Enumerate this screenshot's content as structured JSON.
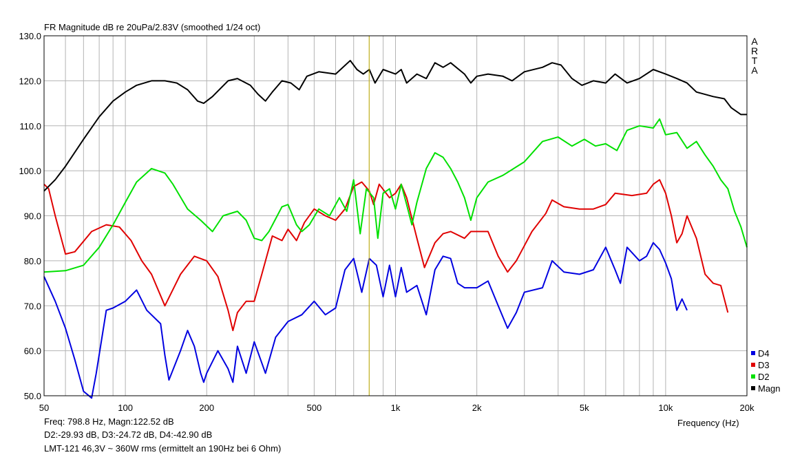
{
  "chart_data": {
    "type": "line",
    "title": "FR Magnitude dB re 20uPa/2.83V (smoothed 1/24 oct)",
    "xlabel": "Frequency (Hz)",
    "ylabel": "",
    "x_scale": "log",
    "xlim": [
      50,
      20000
    ],
    "ylim": [
      50,
      130
    ],
    "xtick_labels": [
      {
        "value": 50,
        "label": "50"
      },
      {
        "value": 100,
        "label": "100"
      },
      {
        "value": 200,
        "label": "200"
      },
      {
        "value": 500,
        "label": "500"
      },
      {
        "value": 1000,
        "label": "1k"
      },
      {
        "value": 2000,
        "label": "2k"
      },
      {
        "value": 5000,
        "label": "5k"
      },
      {
        "value": 10000,
        "label": "10k"
      },
      {
        "value": 20000,
        "label": "20k"
      }
    ],
    "ytick_labels": [
      {
        "value": 130,
        "label": "130.0"
      },
      {
        "value": 120,
        "label": "120.0"
      },
      {
        "value": 110,
        "label": "110.0"
      },
      {
        "value": 100,
        "label": "100.0"
      },
      {
        "value": 90,
        "label": "90.0"
      },
      {
        "value": 80,
        "label": "80.0"
      },
      {
        "value": 70,
        "label": "70.0"
      },
      {
        "value": 60,
        "label": "60.0"
      },
      {
        "value": 50,
        "label": "50.0"
      }
    ],
    "grid": true,
    "cursor_x": 798.8,
    "legend_position": "bottom-right",
    "series": [
      {
        "name": "Magn",
        "color": "#000000",
        "points": [
          [
            50,
            95.5
          ],
          [
            55,
            98
          ],
          [
            60,
            101
          ],
          [
            70,
            107
          ],
          [
            80,
            112
          ],
          [
            90,
            115.5
          ],
          [
            100,
            117.5
          ],
          [
            110,
            119
          ],
          [
            125,
            120
          ],
          [
            140,
            120
          ],
          [
            155,
            119.5
          ],
          [
            170,
            118
          ],
          [
            185,
            115.5
          ],
          [
            195,
            115
          ],
          [
            210,
            116.5
          ],
          [
            240,
            120
          ],
          [
            260,
            120.5
          ],
          [
            290,
            119
          ],
          [
            310,
            117
          ],
          [
            330,
            115.5
          ],
          [
            350,
            117.5
          ],
          [
            380,
            120
          ],
          [
            410,
            119.5
          ],
          [
            440,
            118
          ],
          [
            470,
            121
          ],
          [
            520,
            122
          ],
          [
            600,
            121.5
          ],
          [
            680,
            124.5
          ],
          [
            720,
            122.5
          ],
          [
            760,
            121.5
          ],
          [
            800,
            122.5
          ],
          [
            840,
            119.5
          ],
          [
            900,
            122.5
          ],
          [
            1000,
            121.5
          ],
          [
            1050,
            122.5
          ],
          [
            1100,
            119.5
          ],
          [
            1200,
            121.5
          ],
          [
            1300,
            120.5
          ],
          [
            1400,
            124
          ],
          [
            1500,
            123
          ],
          [
            1600,
            124
          ],
          [
            1800,
            121.5
          ],
          [
            1900,
            119.5
          ],
          [
            2000,
            121
          ],
          [
            2200,
            121.5
          ],
          [
            2500,
            121
          ],
          [
            2700,
            120
          ],
          [
            3000,
            122
          ],
          [
            3500,
            123
          ],
          [
            3800,
            124
          ],
          [
            4100,
            123.5
          ],
          [
            4500,
            120.5
          ],
          [
            4900,
            119
          ],
          [
            5400,
            120
          ],
          [
            6000,
            119.5
          ],
          [
            6500,
            121.5
          ],
          [
            7200,
            119.5
          ],
          [
            8000,
            120.5
          ],
          [
            9000,
            122.5
          ],
          [
            10000,
            121.5
          ],
          [
            11000,
            120.5
          ],
          [
            12000,
            119.5
          ],
          [
            13000,
            117.5
          ],
          [
            15000,
            116.5
          ],
          [
            16500,
            116
          ],
          [
            17500,
            114
          ],
          [
            19000,
            112.5
          ],
          [
            20000,
            112.5
          ]
        ]
      },
      {
        "name": "D2",
        "color": "#00e000",
        "points": [
          [
            50,
            77.5
          ],
          [
            60,
            77.8
          ],
          [
            70,
            79
          ],
          [
            80,
            83
          ],
          [
            90,
            88
          ],
          [
            100,
            93
          ],
          [
            110,
            97.5
          ],
          [
            125,
            100.5
          ],
          [
            140,
            99.5
          ],
          [
            150,
            97
          ],
          [
            170,
            91.5
          ],
          [
            190,
            89
          ],
          [
            210,
            86.5
          ],
          [
            230,
            90
          ],
          [
            260,
            91
          ],
          [
            280,
            89
          ],
          [
            300,
            85
          ],
          [
            320,
            84.5
          ],
          [
            340,
            86.5
          ],
          [
            380,
            92
          ],
          [
            400,
            92.5
          ],
          [
            430,
            88
          ],
          [
            450,
            86.5
          ],
          [
            480,
            88
          ],
          [
            520,
            91.5
          ],
          [
            570,
            90
          ],
          [
            620,
            94
          ],
          [
            660,
            91
          ],
          [
            700,
            98
          ],
          [
            740,
            86
          ],
          [
            780,
            96
          ],
          [
            830,
            94
          ],
          [
            860,
            85
          ],
          [
            900,
            95
          ],
          [
            950,
            96
          ],
          [
            1000,
            91.5
          ],
          [
            1050,
            97
          ],
          [
            1100,
            92.5
          ],
          [
            1150,
            88
          ],
          [
            1200,
            93
          ],
          [
            1300,
            100.5
          ],
          [
            1400,
            104
          ],
          [
            1500,
            103
          ],
          [
            1600,
            100.5
          ],
          [
            1700,
            97.5
          ],
          [
            1800,
            94
          ],
          [
            1900,
            89
          ],
          [
            2000,
            94
          ],
          [
            2200,
            97.5
          ],
          [
            2500,
            99
          ],
          [
            3000,
            102
          ],
          [
            3500,
            106.5
          ],
          [
            4000,
            107.5
          ],
          [
            4500,
            105.5
          ],
          [
            5000,
            107
          ],
          [
            5500,
            105.5
          ],
          [
            6000,
            106
          ],
          [
            6600,
            104.5
          ],
          [
            7200,
            109
          ],
          [
            8000,
            110
          ],
          [
            9000,
            109.5
          ],
          [
            9500,
            111.5
          ],
          [
            10000,
            108
          ],
          [
            11000,
            108.5
          ],
          [
            12000,
            105
          ],
          [
            13000,
            106.5
          ],
          [
            14000,
            103.5
          ],
          [
            15000,
            101
          ],
          [
            16000,
            98
          ],
          [
            17000,
            96
          ],
          [
            18000,
            91
          ],
          [
            19000,
            87.5
          ],
          [
            20000,
            83
          ]
        ]
      },
      {
        "name": "D3",
        "color": "#e00000",
        "points": [
          [
            50,
            97
          ],
          [
            52,
            96
          ],
          [
            55,
            90
          ],
          [
            60,
            81.5
          ],
          [
            65,
            82
          ],
          [
            75,
            86.5
          ],
          [
            85,
            88
          ],
          [
            95,
            87.5
          ],
          [
            105,
            84.5
          ],
          [
            115,
            80
          ],
          [
            125,
            77
          ],
          [
            140,
            70
          ],
          [
            160,
            77
          ],
          [
            180,
            81
          ],
          [
            200,
            80
          ],
          [
            220,
            76.5
          ],
          [
            240,
            69
          ],
          [
            250,
            64.5
          ],
          [
            260,
            68.5
          ],
          [
            280,
            71
          ],
          [
            300,
            71
          ],
          [
            320,
            77
          ],
          [
            350,
            85.5
          ],
          [
            380,
            84.5
          ],
          [
            400,
            87
          ],
          [
            430,
            84.5
          ],
          [
            460,
            88.5
          ],
          [
            500,
            91.5
          ],
          [
            550,
            90
          ],
          [
            600,
            89
          ],
          [
            650,
            91.5
          ],
          [
            700,
            96.5
          ],
          [
            750,
            97.5
          ],
          [
            800,
            95.5
          ],
          [
            830,
            92.5
          ],
          [
            870,
            97
          ],
          [
            950,
            94
          ],
          [
            1000,
            95
          ],
          [
            1050,
            97
          ],
          [
            1100,
            94
          ],
          [
            1200,
            85
          ],
          [
            1280,
            78.5
          ],
          [
            1400,
            84
          ],
          [
            1500,
            86
          ],
          [
            1600,
            86.5
          ],
          [
            1800,
            85
          ],
          [
            1900,
            86.5
          ],
          [
            2000,
            86.5
          ],
          [
            2200,
            86.5
          ],
          [
            2400,
            81
          ],
          [
            2600,
            77.5
          ],
          [
            2800,
            80
          ],
          [
            3200,
            86.5
          ],
          [
            3600,
            90.5
          ],
          [
            3800,
            93.5
          ],
          [
            4200,
            92
          ],
          [
            4800,
            91.5
          ],
          [
            5400,
            91.5
          ],
          [
            6000,
            92.5
          ],
          [
            6500,
            95
          ],
          [
            7500,
            94.5
          ],
          [
            8500,
            95
          ],
          [
            9000,
            97
          ],
          [
            9500,
            98
          ],
          [
            10000,
            95
          ],
          [
            10500,
            90
          ],
          [
            11000,
            84
          ],
          [
            11500,
            86
          ],
          [
            12000,
            90
          ],
          [
            13000,
            85
          ],
          [
            14000,
            77
          ],
          [
            15000,
            75
          ],
          [
            16000,
            74.5
          ],
          [
            17000,
            68.5
          ]
        ]
      },
      {
        "name": "D4",
        "color": "#0000e0",
        "points": [
          [
            50,
            76.5
          ],
          [
            55,
            71
          ],
          [
            60,
            65
          ],
          [
            65,
            58
          ],
          [
            70,
            51
          ],
          [
            75,
            49.5
          ],
          [
            78,
            55
          ],
          [
            85,
            69
          ],
          [
            90,
            69.5
          ],
          [
            100,
            71
          ],
          [
            110,
            73.5
          ],
          [
            120,
            69
          ],
          [
            135,
            66
          ],
          [
            140,
            59
          ],
          [
            145,
            53.5
          ],
          [
            160,
            60
          ],
          [
            170,
            64.5
          ],
          [
            180,
            61
          ],
          [
            190,
            55
          ],
          [
            195,
            53
          ],
          [
            200,
            55
          ],
          [
            220,
            60
          ],
          [
            240,
            56
          ],
          [
            250,
            53
          ],
          [
            260,
            61
          ],
          [
            280,
            55
          ],
          [
            300,
            62
          ],
          [
            330,
            55
          ],
          [
            360,
            63
          ],
          [
            400,
            66.5
          ],
          [
            450,
            68
          ],
          [
            500,
            71
          ],
          [
            550,
            68
          ],
          [
            600,
            69.5
          ],
          [
            650,
            78
          ],
          [
            700,
            80.5
          ],
          [
            750,
            73
          ],
          [
            800,
            80.5
          ],
          [
            850,
            79
          ],
          [
            900,
            72
          ],
          [
            950,
            79
          ],
          [
            1000,
            72
          ],
          [
            1050,
            78.5
          ],
          [
            1100,
            73
          ],
          [
            1200,
            74.5
          ],
          [
            1300,
            68
          ],
          [
            1400,
            78
          ],
          [
            1500,
            81
          ],
          [
            1600,
            80.5
          ],
          [
            1700,
            75
          ],
          [
            1800,
            74
          ],
          [
            2000,
            74
          ],
          [
            2200,
            75.5
          ],
          [
            2400,
            70
          ],
          [
            2600,
            65
          ],
          [
            2800,
            68.5
          ],
          [
            3000,
            73
          ],
          [
            3500,
            74
          ],
          [
            3800,
            80
          ],
          [
            4200,
            77.5
          ],
          [
            4800,
            77
          ],
          [
            5400,
            78
          ],
          [
            6000,
            83
          ],
          [
            6500,
            78
          ],
          [
            6800,
            75
          ],
          [
            7200,
            83
          ],
          [
            8000,
            80
          ],
          [
            8500,
            81
          ],
          [
            9000,
            84
          ],
          [
            9500,
            82.5
          ],
          [
            10000,
            79.5
          ],
          [
            10500,
            76
          ],
          [
            11000,
            69
          ],
          [
            11500,
            71.5
          ],
          [
            12000,
            69
          ]
        ]
      }
    ],
    "annotations": [
      "Freq: 798.8 Hz, Magn:122.52 dB",
      "D2:-29.93 dB, D3:-24.72 dB, D4:-42.90 dB",
      "LMT-121  46,3V  ~ 360W rms (ermittelt an 190Hz bei 6 Ohm)"
    ],
    "legend_order": [
      "D4",
      "D3",
      "D2",
      "Magn"
    ]
  },
  "watermark": [
    "A",
    "R",
    "T",
    "A"
  ],
  "colors": {
    "grid": "#b3b3b3",
    "cursor": "#c8b400",
    "background": "#ffffff"
  }
}
